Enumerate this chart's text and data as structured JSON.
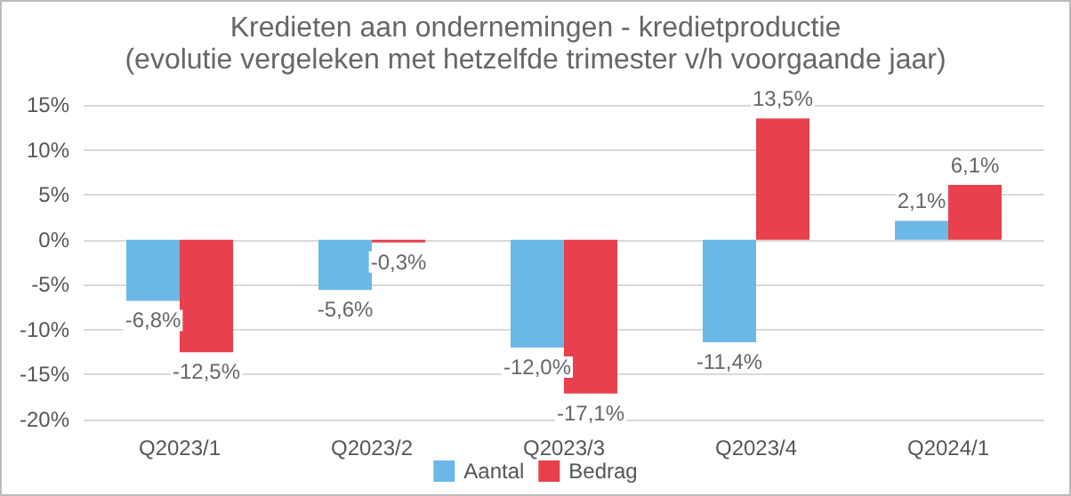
{
  "chart_data": {
    "type": "bar",
    "title": "Kredieten aan ondernemingen - kredietproductie",
    "subtitle": "(evolutie vergeleken met hetzelfde trimester v/h voorgaande jaar)",
    "categories": [
      "Q2023/1",
      "Q2023/2",
      "Q2023/3",
      "Q2023/4",
      "Q2024/1"
    ],
    "series": [
      {
        "name": "Aantal",
        "color": "#6cb8e8",
        "values": [
          -6.8,
          -5.6,
          -12.0,
          -11.4,
          2.1
        ],
        "value_labels": [
          "-6,8%",
          "-5,6%",
          "-12,0%",
          "-11,4%",
          "2,1%"
        ]
      },
      {
        "name": "Bedrag",
        "color": "#e8404c",
        "values": [
          -12.5,
          -0.3,
          -17.1,
          13.5,
          6.1
        ],
        "value_labels": [
          "-12,5%",
          "-0,3%",
          "-17,1%",
          "13,5%",
          "6,1%"
        ]
      }
    ],
    "ylim": [
      -20,
      15
    ],
    "yticks": [
      {
        "value": -20,
        "label": "-20%"
      },
      {
        "value": -15,
        "label": "-15%"
      },
      {
        "value": -10,
        "label": "-10%"
      },
      {
        "value": -5,
        "label": "-5%"
      },
      {
        "value": 0,
        "label": "0%"
      },
      {
        "value": 5,
        "label": "5%"
      },
      {
        "value": 10,
        "label": "10%"
      },
      {
        "value": 15,
        "label": "15%"
      }
    ],
    "grid": true,
    "legend": "bottom"
  }
}
